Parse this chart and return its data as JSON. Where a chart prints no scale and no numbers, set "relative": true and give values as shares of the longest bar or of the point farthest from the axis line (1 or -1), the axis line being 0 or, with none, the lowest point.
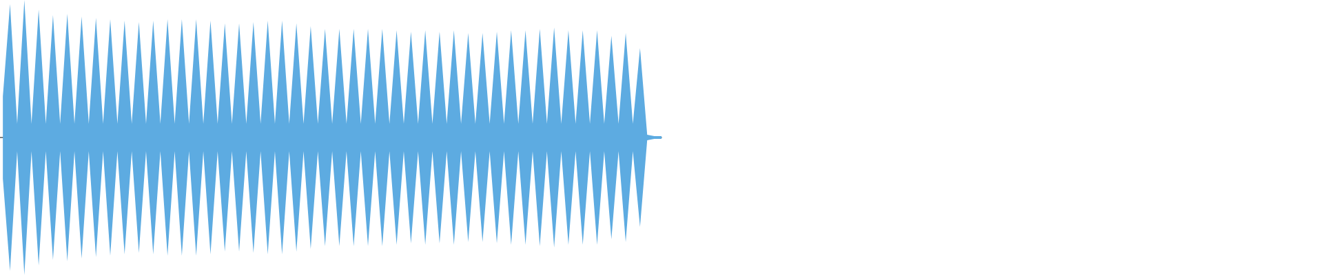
{
  "chart_data": {
    "type": "area",
    "relative": true,
    "categories": [
      null,
      null,
      null,
      null,
      null,
      null,
      null,
      null,
      null,
      null,
      null,
      null,
      null,
      null,
      null,
      null,
      null,
      null,
      null,
      null,
      null,
      null,
      null,
      null,
      null,
      null,
      null,
      null,
      null,
      null,
      null,
      null,
      null,
      null,
      null,
      null,
      null,
      null,
      null,
      null,
      null,
      null,
      null,
      null,
      null,
      null,
      null,
      null,
      null,
      null,
      null,
      null,
      null,
      null,
      null,
      null,
      null,
      null,
      null,
      null,
      null,
      null,
      null,
      null,
      null,
      null,
      null,
      null,
      null,
      null,
      null,
      null,
      null,
      null,
      null,
      null,
      null,
      null,
      null,
      null,
      null,
      null,
      null,
      null,
      null,
      null,
      null,
      null,
      null,
      null,
      null,
      null,
      null
    ],
    "series": [
      {
        "color": "#5dabe1",
        "values": [
          0.3,
          0.97,
          0.1,
          1.0,
          0.1,
          0.93,
          0.1,
          0.89,
          0.1,
          0.9,
          0.1,
          0.88,
          0.1,
          0.87,
          0.1,
          0.86,
          0.1,
          0.85,
          0.1,
          0.84,
          0.1,
          0.85,
          0.1,
          0.86,
          0.1,
          0.86,
          0.1,
          0.86,
          0.1,
          0.85,
          0.1,
          0.83,
          0.1,
          0.83,
          0.1,
          0.84,
          0.1,
          0.85,
          0.1,
          0.85,
          0.1,
          0.83,
          0.1,
          0.81,
          0.1,
          0.79,
          0.1,
          0.79,
          0.1,
          0.79,
          0.1,
          0.79,
          0.1,
          0.79,
          0.1,
          0.78,
          0.1,
          0.77,
          0.1,
          0.78,
          0.1,
          0.77,
          0.1,
          0.78,
          0.1,
          0.76,
          0.1,
          0.76,
          0.1,
          0.77,
          0.1,
          0.78,
          0.1,
          0.78,
          0.1,
          0.79,
          0.1,
          0.8,
          0.1,
          0.78,
          0.1,
          0.78,
          0.1,
          0.78,
          0.1,
          0.74,
          0.1,
          0.76,
          0.1,
          0.65,
          0.02,
          0.01,
          0.01
        ]
      },
      {
        "color": "#5dabe1",
        "values": [
          -0.3,
          -0.97,
          -0.1,
          -1.0,
          -0.1,
          -0.93,
          -0.1,
          -0.89,
          -0.1,
          -0.9,
          -0.1,
          -0.88,
          -0.1,
          -0.87,
          -0.1,
          -0.86,
          -0.1,
          -0.85,
          -0.1,
          -0.84,
          -0.1,
          -0.85,
          -0.1,
          -0.86,
          -0.1,
          -0.86,
          -0.1,
          -0.86,
          -0.1,
          -0.85,
          -0.1,
          -0.83,
          -0.1,
          -0.83,
          -0.1,
          -0.84,
          -0.1,
          -0.85,
          -0.1,
          -0.85,
          -0.1,
          -0.83,
          -0.1,
          -0.81,
          -0.1,
          -0.79,
          -0.1,
          -0.79,
          -0.1,
          -0.79,
          -0.1,
          -0.79,
          -0.1,
          -0.79,
          -0.1,
          -0.78,
          -0.1,
          -0.77,
          -0.1,
          -0.78,
          -0.1,
          -0.77,
          -0.1,
          -0.78,
          -0.1,
          -0.76,
          -0.1,
          -0.76,
          -0.1,
          -0.77,
          -0.1,
          -0.78,
          -0.1,
          -0.78,
          -0.1,
          -0.79,
          -0.1,
          -0.8,
          -0.1,
          -0.78,
          -0.1,
          -0.78,
          -0.1,
          -0.78,
          -0.1,
          -0.74,
          -0.1,
          -0.76,
          -0.1,
          -0.65,
          -0.02,
          -0.01,
          -0.01
        ]
      }
    ]
  }
}
